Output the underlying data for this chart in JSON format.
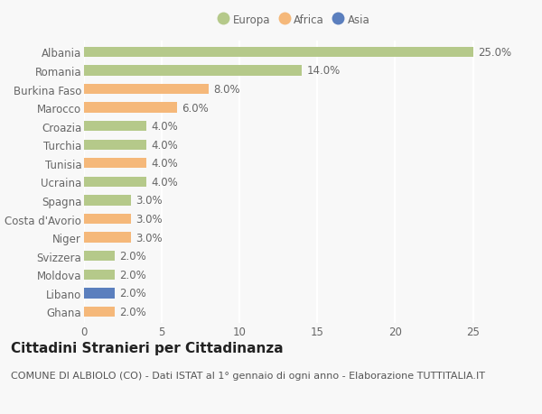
{
  "countries": [
    "Albania",
    "Romania",
    "Burkina Faso",
    "Marocco",
    "Croazia",
    "Turchia",
    "Tunisia",
    "Ucraina",
    "Spagna",
    "Costa d'Avorio",
    "Niger",
    "Svizzera",
    "Moldova",
    "Libano",
    "Ghana"
  ],
  "values": [
    25.0,
    14.0,
    8.0,
    6.0,
    4.0,
    4.0,
    4.0,
    4.0,
    3.0,
    3.0,
    3.0,
    2.0,
    2.0,
    2.0,
    2.0
  ],
  "continents": [
    "Europa",
    "Europa",
    "Africa",
    "Africa",
    "Europa",
    "Europa",
    "Africa",
    "Europa",
    "Europa",
    "Africa",
    "Africa",
    "Europa",
    "Europa",
    "Asia",
    "Africa"
  ],
  "colors": {
    "Europa": "#b5c98a",
    "Africa": "#f5b87a",
    "Asia": "#5b7fbe"
  },
  "title": "Cittadini Stranieri per Cittadinanza",
  "subtitle": "COMUNE DI ALBIOLO (CO) - Dati ISTAT al 1° gennaio di ogni anno - Elaborazione TUTTITALIA.IT",
  "xlim": [
    0,
    27
  ],
  "xticks": [
    0,
    5,
    10,
    15,
    20,
    25
  ],
  "background_color": "#f8f8f8",
  "grid_color": "#ffffff",
  "bar_height": 0.55,
  "label_fontsize": 8.5,
  "tick_fontsize": 8.5,
  "title_fontsize": 11,
  "subtitle_fontsize": 8,
  "label_color": "#666666",
  "tick_color": "#666666"
}
